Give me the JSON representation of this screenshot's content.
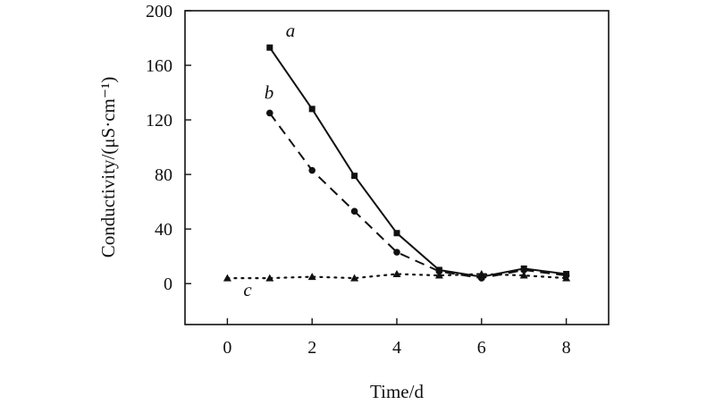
{
  "chart_data": {
    "type": "line",
    "title": "",
    "xlabel": "Time/d",
    "ylabel": "Conductivity/(μS·cm⁻¹)",
    "xlim": [
      -1,
      9
    ],
    "ylim": [
      -30,
      200
    ],
    "xticks": [
      0,
      2,
      4,
      6,
      8
    ],
    "yticks": [
      0,
      40,
      80,
      120,
      160,
      200
    ],
    "grid": false,
    "legend": "inline labels",
    "series": [
      {
        "name": "a",
        "marker": "square",
        "line_style": "solid",
        "x": [
          1,
          2,
          3,
          4,
          5,
          6,
          7,
          8
        ],
        "y": [
          173,
          128,
          79,
          37,
          10,
          5,
          11,
          7
        ]
      },
      {
        "name": "b",
        "marker": "circle",
        "line_style": "dashed",
        "x": [
          1,
          2,
          3,
          4,
          5,
          6,
          7,
          8
        ],
        "y": [
          125,
          83,
          53,
          23,
          9,
          4,
          10,
          6
        ]
      },
      {
        "name": "c",
        "marker": "triangle",
        "line_style": "dotted",
        "x": [
          0,
          1,
          2,
          3,
          4,
          5,
          6,
          7,
          8
        ],
        "y": [
          4,
          4,
          5,
          4,
          7,
          6,
          7,
          6,
          4
        ]
      }
    ]
  }
}
